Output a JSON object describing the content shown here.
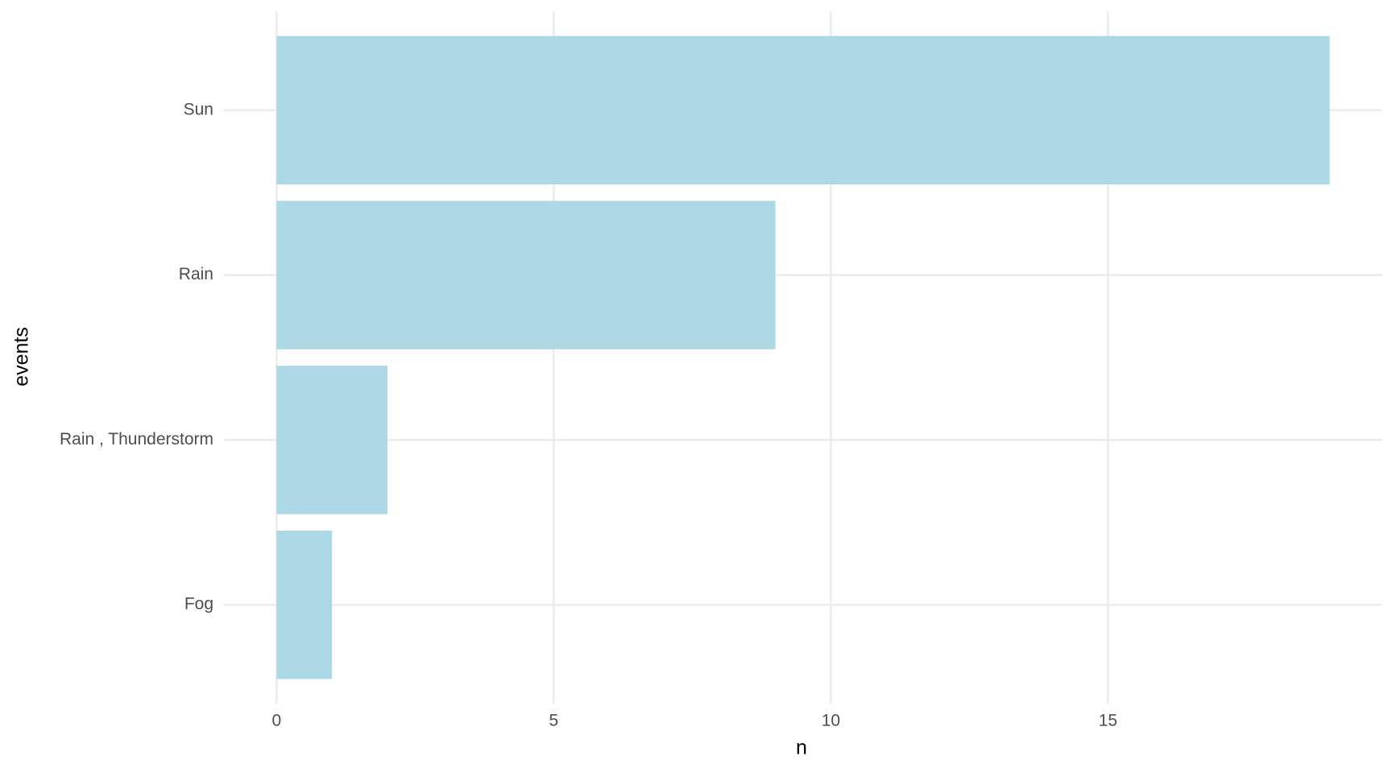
{
  "chart_data": {
    "type": "barh",
    "x_label": "n",
    "y_label": "events",
    "categories": [
      "Sun",
      "Rain",
      "Rain , Thunderstorm",
      "Fog"
    ],
    "values": [
      19,
      9,
      2,
      1
    ],
    "color": "#add8e6",
    "xlim": [
      -0.95,
      19.95
    ],
    "xticks": [
      0,
      5,
      10,
      15
    ],
    "grid": true
  }
}
